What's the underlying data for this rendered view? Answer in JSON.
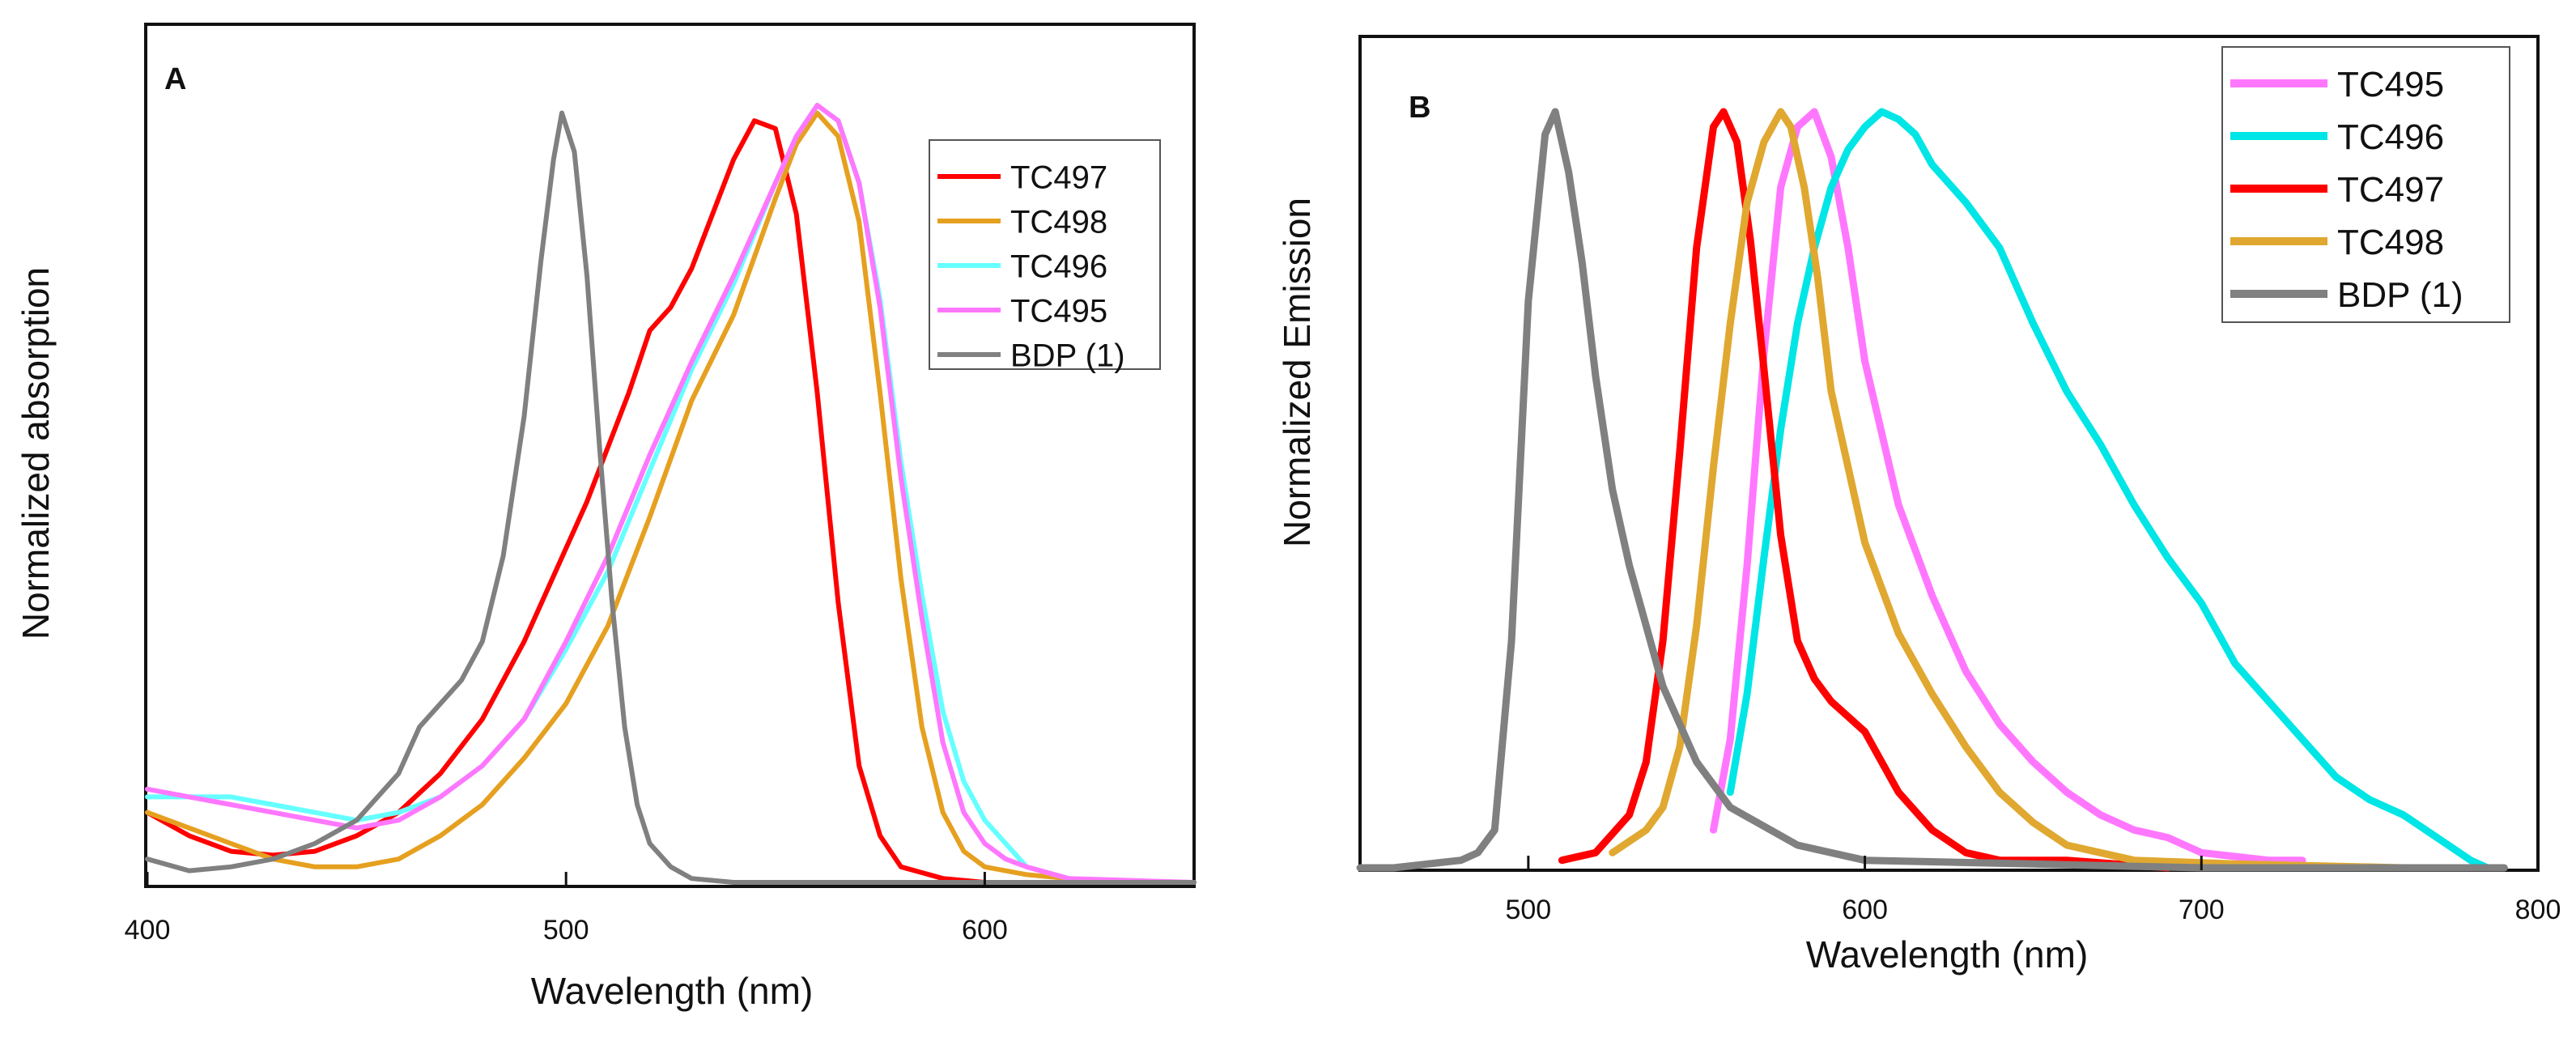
{
  "chart_data": [
    {
      "panel": "A",
      "type": "line",
      "xlabel": "Wavelength (nm)",
      "ylabel": "Normalized absorption",
      "xlim": [
        400,
        650
      ],
      "ylim": [
        0,
        1.0
      ],
      "xticks": [
        400,
        500,
        600
      ],
      "xtick_labels": [
        "400",
        "500",
        "600"
      ],
      "show_y_ticks": false,
      "grid": false,
      "legend_position": "top-right",
      "series": [
        {
          "name": "TC497",
          "color": "#ff0000",
          "x": [
            400,
            410,
            420,
            430,
            440,
            450,
            460,
            470,
            480,
            490,
            500,
            505,
            510,
            515,
            520,
            525,
            530,
            535,
            540,
            545,
            550,
            555,
            560,
            565,
            570,
            575,
            580,
            590,
            600,
            620,
            650
          ],
          "y": [
            0.09,
            0.06,
            0.04,
            0.035,
            0.04,
            0.06,
            0.09,
            0.14,
            0.21,
            0.31,
            0.43,
            0.49,
            0.56,
            0.63,
            0.71,
            0.74,
            0.79,
            0.86,
            0.93,
            0.98,
            0.97,
            0.86,
            0.63,
            0.36,
            0.15,
            0.06,
            0.02,
            0.005,
            0.0,
            0.0,
            0.0
          ]
        },
        {
          "name": "TC498",
          "color": "#e6a020",
          "x": [
            400,
            410,
            420,
            430,
            440,
            450,
            460,
            470,
            480,
            490,
            500,
            510,
            520,
            530,
            540,
            550,
            555,
            560,
            565,
            570,
            575,
            580,
            585,
            590,
            595,
            600,
            610,
            620,
            630,
            650
          ],
          "y": [
            0.09,
            0.07,
            0.05,
            0.03,
            0.02,
            0.02,
            0.03,
            0.06,
            0.1,
            0.16,
            0.23,
            0.33,
            0.47,
            0.62,
            0.73,
            0.88,
            0.95,
            0.99,
            0.96,
            0.85,
            0.63,
            0.39,
            0.2,
            0.09,
            0.04,
            0.02,
            0.01,
            0.005,
            0.0,
            0.0
          ]
        },
        {
          "name": "TC496",
          "color": "#66ffff",
          "x": [
            400,
            410,
            420,
            430,
            440,
            450,
            460,
            470,
            480,
            490,
            500,
            510,
            520,
            530,
            540,
            550,
            555,
            560,
            565,
            570,
            575,
            580,
            585,
            590,
            595,
            600,
            605,
            610,
            620,
            630,
            650
          ],
          "y": [
            0.11,
            0.11,
            0.11,
            0.1,
            0.09,
            0.08,
            0.09,
            0.11,
            0.15,
            0.21,
            0.3,
            0.4,
            0.53,
            0.66,
            0.77,
            0.9,
            0.96,
            1.0,
            0.98,
            0.9,
            0.75,
            0.54,
            0.37,
            0.22,
            0.13,
            0.08,
            0.05,
            0.02,
            0.005,
            0.0,
            0.0
          ]
        },
        {
          "name": "TC495",
          "color": "#ff77ff",
          "x": [
            400,
            410,
            420,
            430,
            440,
            450,
            460,
            470,
            480,
            490,
            500,
            510,
            520,
            530,
            540,
            550,
            555,
            560,
            565,
            570,
            575,
            580,
            585,
            590,
            595,
            600,
            605,
            610,
            620,
            650
          ],
          "y": [
            0.12,
            0.11,
            0.1,
            0.09,
            0.08,
            0.07,
            0.08,
            0.11,
            0.15,
            0.21,
            0.31,
            0.42,
            0.55,
            0.67,
            0.78,
            0.9,
            0.96,
            1.0,
            0.98,
            0.9,
            0.74,
            0.52,
            0.34,
            0.18,
            0.09,
            0.05,
            0.03,
            0.02,
            0.005,
            0.0
          ]
        },
        {
          "name": "BDP (1)",
          "color": "#808080",
          "x": [
            400,
            410,
            420,
            430,
            440,
            450,
            460,
            465,
            470,
            475,
            480,
            485,
            490,
            494,
            497,
            499,
            502,
            505,
            508,
            511,
            514,
            517,
            520,
            525,
            530,
            540,
            560,
            650
          ],
          "y": [
            0.03,
            0.015,
            0.02,
            0.03,
            0.05,
            0.08,
            0.14,
            0.2,
            0.23,
            0.26,
            0.31,
            0.42,
            0.6,
            0.8,
            0.93,
            0.99,
            0.94,
            0.78,
            0.56,
            0.36,
            0.2,
            0.1,
            0.05,
            0.02,
            0.005,
            0.0,
            0.0,
            0.0
          ]
        }
      ],
      "legend_entries": [
        "TC497",
        "TC498",
        "TC496",
        "TC495",
        "BDP (1)"
      ],
      "panel_label": "A"
    },
    {
      "panel": "B",
      "type": "line",
      "xlabel": "Wavelength (nm)",
      "ylabel": "Normalized Emission",
      "xlim": [
        450,
        800
      ],
      "ylim": [
        0,
        1.0
      ],
      "xticks": [
        500,
        600,
        700,
        800
      ],
      "xtick_labels": [
        "500",
        "600",
        "700",
        "800"
      ],
      "show_y_ticks": false,
      "grid": false,
      "legend_position": "top-right",
      "series": [
        {
          "name": "TC495",
          "color": "#ff77ff",
          "x": [
            555,
            560,
            565,
            570,
            575,
            580,
            585,
            590,
            595,
            600,
            610,
            620,
            630,
            640,
            650,
            660,
            670,
            680,
            690,
            700,
            720,
            730
          ],
          "y": [
            0.05,
            0.17,
            0.4,
            0.68,
            0.9,
            0.98,
            1.0,
            0.94,
            0.82,
            0.67,
            0.48,
            0.36,
            0.26,
            0.19,
            0.14,
            0.1,
            0.07,
            0.05,
            0.04,
            0.02,
            0.01,
            0.01
          ]
        },
        {
          "name": "TC496",
          "color": "#00e5e5",
          "x": [
            560,
            565,
            570,
            575,
            580,
            585,
            590,
            595,
            600,
            605,
            610,
            615,
            620,
            630,
            640,
            650,
            660,
            670,
            680,
            690,
            700,
            710,
            720,
            730,
            740,
            750,
            760,
            770,
            780,
            785
          ],
          "y": [
            0.1,
            0.23,
            0.41,
            0.58,
            0.72,
            0.82,
            0.9,
            0.95,
            0.98,
            1.0,
            0.99,
            0.97,
            0.93,
            0.88,
            0.82,
            0.72,
            0.63,
            0.56,
            0.48,
            0.41,
            0.35,
            0.27,
            0.22,
            0.17,
            0.12,
            0.09,
            0.07,
            0.04,
            0.01,
            0.0
          ]
        },
        {
          "name": "TC497",
          "color": "#ff0000",
          "x": [
            510,
            520,
            530,
            535,
            540,
            545,
            550,
            555,
            558,
            562,
            566,
            570,
            575,
            580,
            585,
            590,
            595,
            600,
            610,
            620,
            630,
            640,
            660,
            690
          ],
          "y": [
            0.01,
            0.02,
            0.07,
            0.14,
            0.3,
            0.55,
            0.82,
            0.98,
            1.0,
            0.96,
            0.83,
            0.66,
            0.44,
            0.3,
            0.25,
            0.22,
            0.2,
            0.18,
            0.1,
            0.05,
            0.02,
            0.01,
            0.01,
            0.0
          ]
        },
        {
          "name": "TC498",
          "color": "#e0a830",
          "x": [
            525,
            535,
            540,
            545,
            550,
            555,
            560,
            565,
            570,
            575,
            578,
            582,
            586,
            590,
            600,
            610,
            620,
            630,
            640,
            650,
            660,
            680,
            710,
            760
          ],
          "y": [
            0.02,
            0.05,
            0.08,
            0.16,
            0.32,
            0.53,
            0.72,
            0.88,
            0.96,
            1.0,
            0.98,
            0.9,
            0.78,
            0.63,
            0.43,
            0.31,
            0.23,
            0.16,
            0.1,
            0.06,
            0.03,
            0.01,
            0.005,
            0.0
          ]
        },
        {
          "name": "BDP (1)",
          "color": "#808080",
          "x": [
            450,
            460,
            470,
            480,
            485,
            490,
            495,
            500,
            505,
            508,
            512,
            516,
            520,
            525,
            530,
            535,
            540,
            550,
            560,
            580,
            600,
            650,
            700,
            790
          ],
          "y": [
            0.0,
            0.0,
            0.005,
            0.01,
            0.02,
            0.05,
            0.3,
            0.75,
            0.97,
            1.0,
            0.92,
            0.8,
            0.65,
            0.5,
            0.4,
            0.32,
            0.24,
            0.14,
            0.08,
            0.03,
            0.01,
            0.005,
            0.0,
            0.0
          ]
        }
      ],
      "legend_entries": [
        "TC495",
        "TC496",
        "TC497",
        "TC498",
        "BDP (1)"
      ],
      "panel_label": "B"
    }
  ]
}
